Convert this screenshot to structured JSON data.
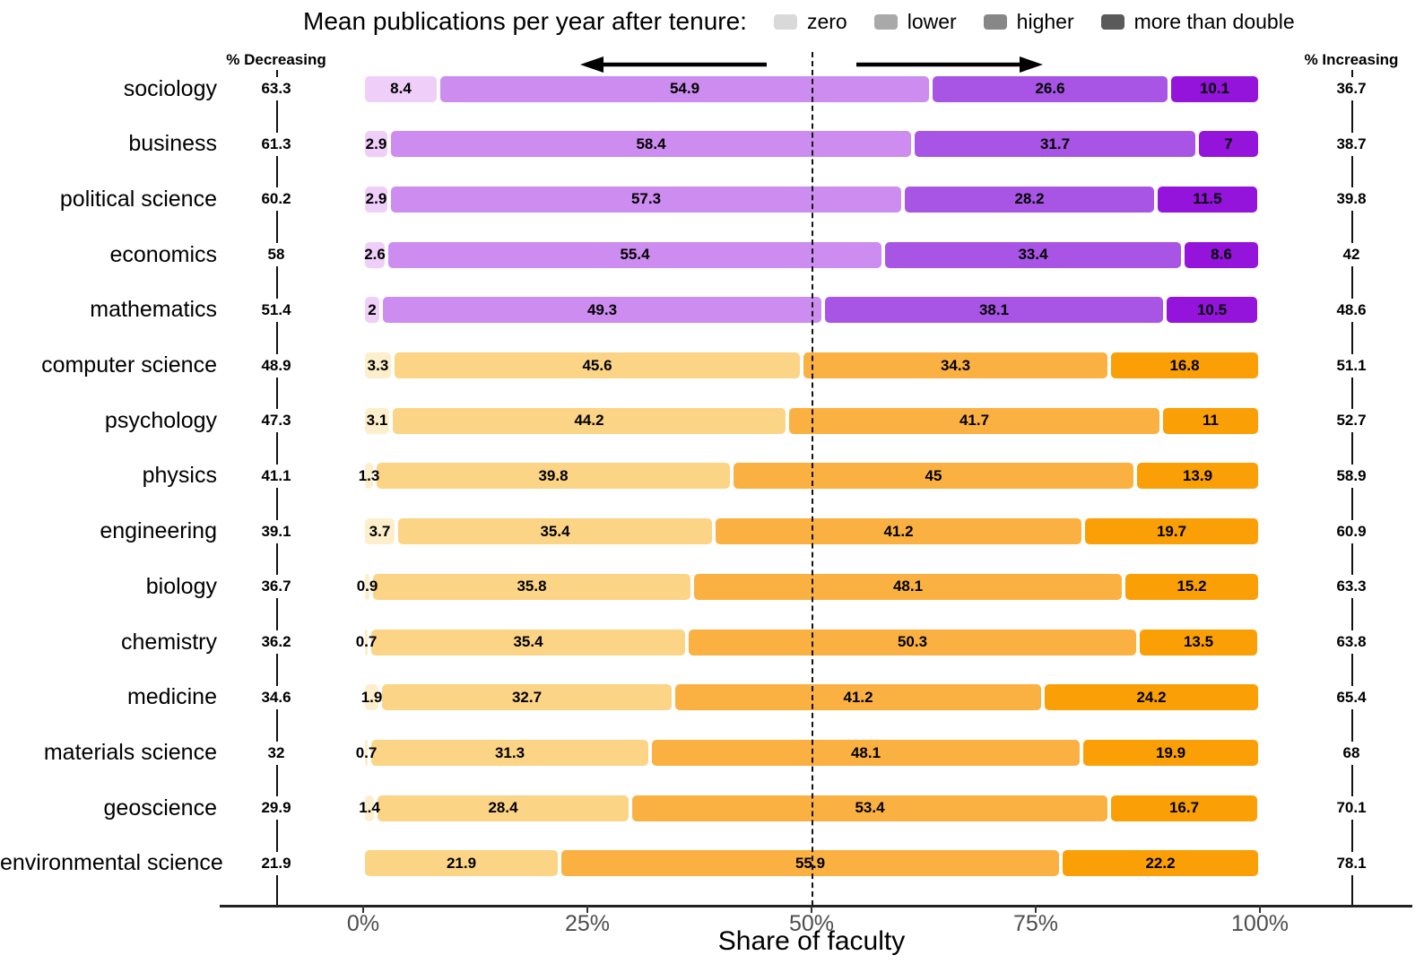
{
  "title": "Mean publications per year after tenure:",
  "legend": {
    "items": [
      {
        "label": "zero",
        "swatch": "#D9D9D9"
      },
      {
        "label": "lower",
        "swatch": "#A9A9A9"
      },
      {
        "label": "higher",
        "swatch": "#878787"
      },
      {
        "label": "more than double",
        "swatch": "#5A5A5A"
      }
    ]
  },
  "chart_data": {
    "type": "bar",
    "orientation": "horizontal",
    "stacked": true,
    "title": "Mean publications per year after tenure:",
    "xlabel": "Share of faculty",
    "x_ticks": [
      {
        "label": "0%",
        "pct": 0
      },
      {
        "label": "25%",
        "pct": 25
      },
      {
        "label": "50%",
        "pct": 50
      },
      {
        "label": "75%",
        "pct": 75
      },
      {
        "label": "100%",
        "pct": 100
      }
    ],
    "x_range": [
      0,
      100
    ],
    "reference_line_pct": 50,
    "grid": false,
    "left_column_header": "% Decreasing",
    "right_column_header": "% Increasing",
    "segment_keys": [
      "zero",
      "lower",
      "higher",
      "more_than_double"
    ],
    "palettes": {
      "purple": [
        "#EFCFF9",
        "#CD8CF0",
        "#A855E6",
        "#9414DC"
      ],
      "orange": [
        "#FDEFCB",
        "#FCD485",
        "#FBB142",
        "#FA9F06"
      ]
    },
    "rows": [
      {
        "field": "sociology",
        "pct_decreasing": "63.3",
        "pct_increasing": "36.7",
        "palette": "purple",
        "values": [
          8.4,
          54.9,
          26.6,
          10.1
        ],
        "labels": [
          "8.4",
          "54.9",
          "26.6",
          "10.1"
        ]
      },
      {
        "field": "business",
        "pct_decreasing": "61.3",
        "pct_increasing": "38.7",
        "palette": "purple",
        "values": [
          2.9,
          58.4,
          31.7,
          7.0
        ],
        "labels": [
          "2.9",
          "58.4",
          "31.7",
          "7"
        ]
      },
      {
        "field": "political science",
        "pct_decreasing": "60.2",
        "pct_increasing": "39.8",
        "palette": "purple",
        "values": [
          2.9,
          57.3,
          28.2,
          11.5
        ],
        "labels": [
          "2.9",
          "57.3",
          "28.2",
          "11.5"
        ]
      },
      {
        "field": "economics",
        "pct_decreasing": "58",
        "pct_increasing": "42",
        "palette": "purple",
        "values": [
          2.6,
          55.4,
          33.4,
          8.6
        ],
        "labels": [
          "2.6",
          "55.4",
          "33.4",
          "8.6"
        ]
      },
      {
        "field": "mathematics",
        "pct_decreasing": "51.4",
        "pct_increasing": "48.6",
        "palette": "purple",
        "values": [
          2.0,
          49.3,
          38.1,
          10.5
        ],
        "labels": [
          "2",
          "49.3",
          "38.1",
          "10.5"
        ]
      },
      {
        "field": "computer science",
        "pct_decreasing": "48.9",
        "pct_increasing": "51.1",
        "palette": "orange",
        "values": [
          3.3,
          45.6,
          34.3,
          16.8
        ],
        "labels": [
          "3.3",
          "45.6",
          "34.3",
          "16.8"
        ]
      },
      {
        "field": "psychology",
        "pct_decreasing": "47.3",
        "pct_increasing": "52.7",
        "palette": "orange",
        "values": [
          3.1,
          44.2,
          41.7,
          11.0
        ],
        "labels": [
          "3.1",
          "44.2",
          "41.7",
          "11"
        ]
      },
      {
        "field": "physics",
        "pct_decreasing": "41.1",
        "pct_increasing": "58.9",
        "palette": "orange",
        "values": [
          1.3,
          39.8,
          45.0,
          13.9
        ],
        "labels": [
          "1.3",
          "39.8",
          "45",
          "13.9"
        ]
      },
      {
        "field": "engineering",
        "pct_decreasing": "39.1",
        "pct_increasing": "60.9",
        "palette": "orange",
        "values": [
          3.7,
          35.4,
          41.2,
          19.7
        ],
        "labels": [
          "3.7",
          "35.4",
          "41.2",
          "19.7"
        ]
      },
      {
        "field": "biology",
        "pct_decreasing": "36.7",
        "pct_increasing": "63.3",
        "palette": "orange",
        "values": [
          0.9,
          35.8,
          48.1,
          15.2
        ],
        "labels": [
          "0.9",
          "35.8",
          "48.1",
          "15.2"
        ]
      },
      {
        "field": "chemistry",
        "pct_decreasing": "36.2",
        "pct_increasing": "63.8",
        "palette": "orange",
        "values": [
          0.7,
          35.4,
          50.3,
          13.5
        ],
        "labels": [
          "0.7",
          "35.4",
          "50.3",
          "13.5"
        ]
      },
      {
        "field": "medicine",
        "pct_decreasing": "34.6",
        "pct_increasing": "65.4",
        "palette": "orange",
        "values": [
          1.9,
          32.7,
          41.2,
          24.2
        ],
        "labels": [
          "1.9",
          "32.7",
          "41.2",
          "24.2"
        ]
      },
      {
        "field": "materials science",
        "pct_decreasing": "32",
        "pct_increasing": "68",
        "palette": "orange",
        "values": [
          0.7,
          31.3,
          48.1,
          19.9
        ],
        "labels": [
          "0.7",
          "31.3",
          "48.1",
          "19.9"
        ]
      },
      {
        "field": "geoscience",
        "pct_decreasing": "29.9",
        "pct_increasing": "70.1",
        "palette": "orange",
        "values": [
          1.4,
          28.4,
          53.4,
          16.7
        ],
        "labels": [
          "1.4",
          "28.4",
          "53.4",
          "16.7"
        ]
      },
      {
        "field": "environmental science",
        "pct_decreasing": "21.9",
        "pct_increasing": "78.1",
        "palette": "orange",
        "values": [
          0,
          21.9,
          55.9,
          22.2
        ],
        "labels": [
          "",
          "21.9",
          "55.9",
          "22.2"
        ]
      }
    ]
  }
}
